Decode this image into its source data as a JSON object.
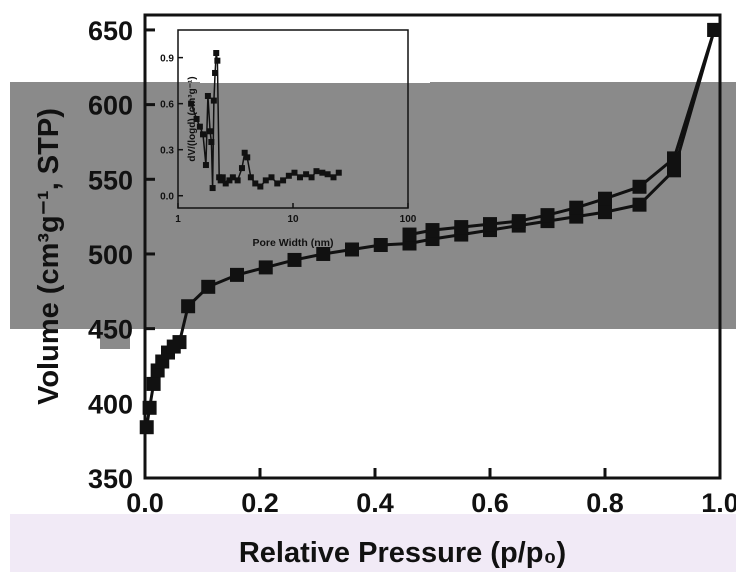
{
  "chart_data": [
    {
      "type": "line",
      "xlabel": "Relative Pressure (p/p₀)",
      "ylabel": "Volume (cm³g⁻¹, STP)",
      "xlim": [
        0.0,
        1.0
      ],
      "ylim": [
        350,
        660
      ],
      "x_ticks": [
        "0.0",
        "0.2",
        "0.4",
        "0.6",
        "0.8",
        "1.0"
      ],
      "y_ticks": [
        "350",
        "400",
        "450",
        "500",
        "550",
        "600",
        "650"
      ],
      "marker": "square",
      "series": [
        {
          "x": [
            0.003,
            0.008,
            0.015,
            0.022,
            0.03,
            0.04,
            0.05,
            0.06,
            0.075,
            0.11,
            0.16,
            0.21,
            0.26,
            0.31,
            0.36,
            0.41,
            0.46,
            0.5,
            0.55,
            0.6,
            0.65,
            0.7,
            0.75,
            0.8,
            0.86,
            0.92,
            0.99
          ],
          "y": [
            384,
            397,
            413,
            422,
            428,
            434,
            438,
            441,
            465,
            478,
            486,
            491,
            496,
            500,
            503,
            506,
            507,
            510,
            513,
            516,
            519,
            522,
            525,
            528,
            533,
            556,
            650
          ]
        },
        {
          "x": [
            0.46,
            0.5,
            0.55,
            0.6,
            0.65,
            0.7,
            0.75,
            0.8,
            0.86,
            0.92,
            0.99
          ],
          "y": [
            513,
            516,
            518,
            520,
            522,
            526,
            531,
            537,
            545,
            564,
            650
          ]
        }
      ],
      "grid": false
    },
    {
      "type": "line",
      "xlabel": "Pore Width (nm)",
      "ylabel": "dV/(logd) (cm³g⁻¹)",
      "xscale": "log",
      "xlim": [
        1,
        100
      ],
      "ylim": [
        -0.08,
        1.08
      ],
      "x_ticks": [
        "1",
        "10",
        "100"
      ],
      "y_ticks": [
        "0.0",
        "0.3",
        "0.6",
        "0.9"
      ],
      "marker": "square",
      "series": [
        {
          "x": [
            1.3,
            1.45,
            1.55,
            1.65,
            1.75,
            1.82,
            1.9,
            1.95,
            2.0,
            2.05,
            2.1,
            2.15,
            2.2,
            2.28,
            2.35,
            2.45,
            2.6,
            2.8,
            3.0,
            3.3,
            3.6,
            3.8,
            4.0,
            4.3,
            4.7,
            5.2,
            5.8,
            6.5,
            7.3,
            8.2,
            9.2,
            10.3,
            11.5,
            13,
            14.5,
            16,
            18,
            20,
            22.5,
            25
          ],
          "y": [
            0.6,
            0.5,
            0.45,
            0.4,
            0.2,
            0.65,
            0.42,
            0.35,
            0.05,
            0.62,
            0.8,
            0.93,
            0.88,
            0.12,
            0.1,
            0.12,
            0.08,
            0.1,
            0.12,
            0.1,
            0.18,
            0.28,
            0.25,
            0.12,
            0.08,
            0.06,
            0.1,
            0.12,
            0.08,
            0.1,
            0.13,
            0.15,
            0.12,
            0.14,
            0.12,
            0.16,
            0.15,
            0.14,
            0.12,
            0.15
          ]
        }
      ],
      "grid": false
    }
  ],
  "colors": {
    "gray_band": "#8a8a8a",
    "lavender_band": "#f1eaf6",
    "ink": "#111111"
  }
}
